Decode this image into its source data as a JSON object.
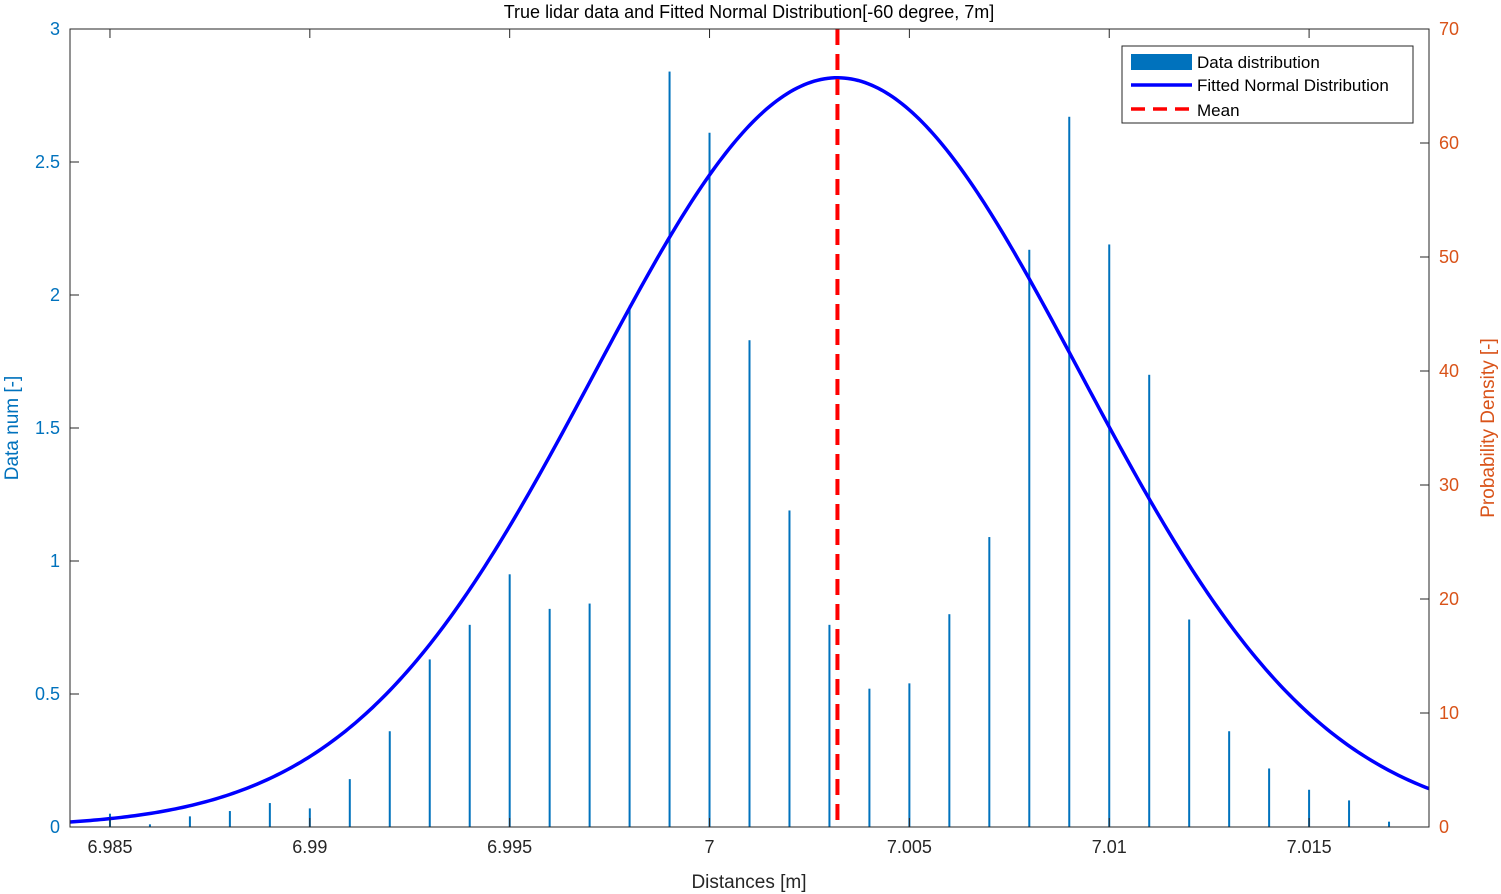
{
  "chart_data": {
    "type": "bar",
    "title": "True lidar data and Fitted Normal Distribution[-60 degree, 7m]",
    "xlabel": "Distances [m]",
    "ylabel_left": "Data num [-]",
    "ylabel_right": "Probability Density [-]",
    "xlim": [
      6.984,
      7.018
    ],
    "ylim_left": [
      0,
      3
    ],
    "ylim_right": [
      0,
      70
    ],
    "x_ticks": [
      6.985,
      6.99,
      6.995,
      7.0,
      7.005,
      7.01,
      7.015
    ],
    "x_tick_labels": [
      "6.985",
      "6.99",
      "6.995",
      "7",
      "7.005",
      "7.01",
      "7.015"
    ],
    "y_left_ticks": [
      0,
      0.5,
      1,
      1.5,
      2,
      2.5,
      3
    ],
    "y_left_tick_labels": [
      "0",
      "0.5",
      "1",
      "1.5",
      "2",
      "2.5",
      "3"
    ],
    "y_right_ticks": [
      0,
      10,
      20,
      30,
      40,
      50,
      60,
      70
    ],
    "y_right_tick_labels": [
      "0",
      "10",
      "20",
      "30",
      "40",
      "50",
      "60",
      "70"
    ],
    "grid": false,
    "legend_position": "top-right",
    "series": [
      {
        "name": "Data distribution",
        "kind": "bar",
        "axis": "left",
        "color": "#0072BD",
        "x": [
          6.985,
          6.986,
          6.987,
          6.988,
          6.989,
          6.99,
          6.991,
          6.992,
          6.993,
          6.994,
          6.995,
          6.996,
          6.997,
          6.998,
          6.999,
          7.0,
          7.001,
          7.002,
          7.003,
          7.004,
          7.005,
          7.006,
          7.007,
          7.008,
          7.009,
          7.01,
          7.011,
          7.012,
          7.013,
          7.014,
          7.015,
          7.016,
          7.017
        ],
        "values": [
          0.05,
          0.01,
          0.04,
          0.06,
          0.09,
          0.07,
          0.18,
          0.36,
          0.63,
          0.76,
          0.95,
          0.82,
          0.84,
          1.96,
          2.84,
          2.61,
          1.83,
          1.19,
          0.76,
          0.52,
          0.54,
          0.8,
          1.09,
          2.17,
          2.67,
          2.19,
          1.7,
          0.78,
          0.36,
          0.22,
          0.14,
          0.1,
          0.02
        ]
      },
      {
        "name": "Fitted Normal Distribution",
        "kind": "line",
        "axis": "right",
        "color": "#0000FF",
        "mean": 7.0032,
        "std": 0.00607
      },
      {
        "name": "Mean",
        "kind": "vline",
        "axis": "left",
        "color": "#FF0000",
        "x": 7.0032
      }
    ],
    "colors": {
      "left_axis": "#0072BD",
      "right_axis": "#D95319",
      "axes": "#262626"
    }
  }
}
